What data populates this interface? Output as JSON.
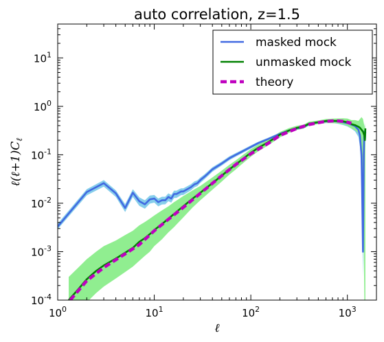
{
  "chart_data": {
    "type": "line",
    "title": "auto correlation, z=1.5",
    "xlabel": "ℓ",
    "ylabel": "ℓ(ℓ+1)C",
    "ylabel_sub": "ℓ",
    "xscale": "log",
    "yscale": "log",
    "xlim": [
      1,
      2000
    ],
    "ylim": [
      0.0001,
      50
    ],
    "xticks": [
      {
        "v": 1,
        "base": "10",
        "exp": "0"
      },
      {
        "v": 10,
        "base": "10",
        "exp": "1"
      },
      {
        "v": 100,
        "base": "10",
        "exp": "2"
      },
      {
        "v": 1000,
        "base": "10",
        "exp": "3"
      }
    ],
    "yticks": [
      {
        "v": 0.0001,
        "base": "10",
        "exp": "-4"
      },
      {
        "v": 0.001,
        "base": "10",
        "exp": "-3"
      },
      {
        "v": 0.01,
        "base": "10",
        "exp": "-2"
      },
      {
        "v": 0.1,
        "base": "10",
        "exp": "-1"
      },
      {
        "v": 1,
        "base": "10",
        "exp": "0"
      },
      {
        "v": 10,
        "base": "10",
        "exp": "1"
      }
    ],
    "legend": {
      "position": "top-right"
    },
    "series": [
      {
        "name": "masked mock",
        "color": "#4169e1",
        "band_color": "#87ceeb",
        "style": "solid",
        "x": [
          1,
          2,
          3,
          4,
          5,
          6,
          7,
          8,
          9,
          10,
          11,
          12,
          13,
          14,
          15,
          16,
          17,
          18,
          19,
          20,
          22,
          24,
          26,
          28,
          30,
          33,
          36,
          40,
          45,
          50,
          60,
          70,
          80,
          100,
          120,
          150,
          200,
          250,
          300,
          350,
          400,
          500,
          600,
          700,
          800,
          900,
          1000,
          1100,
          1200,
          1300,
          1350,
          1400,
          1420,
          1450,
          1480,
          1500,
          1520,
          1536
        ],
        "y": [
          0.0033,
          0.017,
          0.026,
          0.016,
          0.008,
          0.0165,
          0.011,
          0.0095,
          0.012,
          0.0125,
          0.0105,
          0.0115,
          0.0115,
          0.0135,
          0.0125,
          0.0155,
          0.0155,
          0.0165,
          0.0175,
          0.0175,
          0.0195,
          0.0215,
          0.0245,
          0.026,
          0.03,
          0.035,
          0.041,
          0.05,
          0.058,
          0.066,
          0.085,
          0.1,
          0.115,
          0.145,
          0.175,
          0.21,
          0.27,
          0.32,
          0.35,
          0.37,
          0.43,
          0.47,
          0.49,
          0.5,
          0.49,
          0.47,
          0.45,
          0.42,
          0.39,
          0.33,
          0.25,
          0.1,
          0.02,
          0.001,
          0.1,
          0.3,
          0.2,
          0.3
        ],
        "band_lower": [
          0.0029,
          0.0145,
          0.022,
          0.0135,
          0.0066,
          0.0135,
          0.0088,
          0.0077,
          0.0098,
          0.0103,
          0.0086,
          0.0094,
          0.0095,
          0.011,
          0.0103,
          0.0128,
          0.0129,
          0.0138,
          0.0147,
          0.0148,
          0.0166,
          0.0184,
          0.0212,
          0.0226,
          0.0263,
          0.031,
          0.0365,
          0.0448,
          0.0522,
          0.0598,
          0.0775,
          0.0918,
          0.106,
          0.134,
          0.163,
          0.196,
          0.254,
          0.301,
          0.33,
          0.348,
          0.402,
          0.437,
          0.45,
          0.453,
          0.437,
          0.412,
          0.385,
          0.345,
          0.305,
          0.235,
          0.15,
          0.04,
          0.005,
          0.0003,
          0.03,
          0.15,
          0.1,
          0.18
        ],
        "band_upper": [
          0.0038,
          0.0195,
          0.03,
          0.0185,
          0.0096,
          0.0195,
          0.0132,
          0.0115,
          0.0144,
          0.0148,
          0.0125,
          0.0136,
          0.0136,
          0.016,
          0.0148,
          0.0182,
          0.0182,
          0.0193,
          0.0203,
          0.0203,
          0.0225,
          0.0247,
          0.0281,
          0.0298,
          0.0339,
          0.0392,
          0.0458,
          0.0553,
          0.064,
          0.0725,
          0.093,
          0.109,
          0.124,
          0.156,
          0.187,
          0.224,
          0.286,
          0.339,
          0.37,
          0.392,
          0.457,
          0.502,
          0.527,
          0.544,
          0.54,
          0.527,
          0.515,
          0.5,
          0.485,
          0.44,
          0.37,
          0.18,
          0.06,
          0.002,
          0.2,
          0.45,
          0.3,
          0.4
        ]
      },
      {
        "name": "unmasked mock",
        "color": "#008000",
        "band_color": "#90ee90",
        "style": "solid",
        "x": [
          1.3,
          1.6,
          2,
          2.5,
          3,
          4,
          5,
          6,
          7,
          8,
          9,
          10,
          12,
          14,
          16,
          18,
          20,
          25,
          30,
          40,
          50,
          60,
          70,
          80,
          100,
          120,
          150,
          200,
          250,
          300,
          350,
          400,
          500,
          600,
          700,
          800,
          900,
          1000,
          1100,
          1200,
          1300,
          1350,
          1400,
          1450,
          1480,
          1500,
          1520,
          1536
        ],
        "y": [
          0.0001,
          0.00016,
          0.00027,
          0.0004,
          0.00052,
          0.00072,
          0.00095,
          0.0012,
          0.0016,
          0.0019,
          0.0023,
          0.0028,
          0.0037,
          0.0048,
          0.006,
          0.0073,
          0.0087,
          0.0125,
          0.0165,
          0.026,
          0.037,
          0.05,
          0.063,
          0.078,
          0.11,
          0.14,
          0.18,
          0.26,
          0.32,
          0.36,
          0.38,
          0.44,
          0.47,
          0.5,
          0.5,
          0.5,
          0.49,
          0.47,
          0.43,
          0.41,
          0.38,
          0.36,
          0.33,
          0.3,
          0.27,
          0.25,
          0.2,
          0.35
        ],
        "band_lower": [
          3e-05,
          5e-05,
          9e-05,
          0.00014,
          0.00019,
          0.00028,
          0.00038,
          0.00049,
          0.00065,
          0.00082,
          0.001,
          0.0013,
          0.0018,
          0.0025,
          0.0032,
          0.0041,
          0.0051,
          0.0082,
          0.0115,
          0.019,
          0.028,
          0.039,
          0.05,
          0.063,
          0.091,
          0.119,
          0.155,
          0.228,
          0.285,
          0.325,
          0.345,
          0.4,
          0.43,
          0.455,
          0.45,
          0.445,
          0.425,
          0.395,
          0.35,
          0.32,
          0.28,
          0.2,
          0.08,
          0.03,
          0.001,
          0.0001,
          0.0001,
          0.0001
        ],
        "band_upper": [
          0.0003,
          0.00045,
          0.0007,
          0.001,
          0.0013,
          0.0017,
          0.0022,
          0.0027,
          0.0035,
          0.0041,
          0.0048,
          0.0056,
          0.0071,
          0.0086,
          0.0105,
          0.0122,
          0.0141,
          0.0185,
          0.0228,
          0.034,
          0.047,
          0.062,
          0.077,
          0.094,
          0.13,
          0.163,
          0.206,
          0.294,
          0.357,
          0.397,
          0.418,
          0.482,
          0.512,
          0.548,
          0.556,
          0.562,
          0.565,
          0.56,
          0.52,
          0.52,
          0.5,
          0.55,
          0.6,
          0.55,
          0.45,
          0.4,
          0.35,
          0.45
        ]
      },
      {
        "name": "theory",
        "color": "#bf00bf",
        "style": "dashed",
        "x": [
          1.35,
          2,
          3,
          4,
          5,
          7,
          10,
          15,
          20,
          30,
          50,
          70,
          100,
          150,
          200,
          300,
          400,
          500,
          600,
          700,
          800,
          900,
          1000,
          1100
        ],
        "y": [
          0.0001,
          0.00025,
          0.00047,
          0.00068,
          0.0009,
          0.0014,
          0.0027,
          0.0052,
          0.0082,
          0.016,
          0.037,
          0.063,
          0.105,
          0.17,
          0.25,
          0.35,
          0.42,
          0.46,
          0.49,
          0.5,
          0.5,
          0.49,
          0.47,
          0.45
        ]
      }
    ]
  }
}
